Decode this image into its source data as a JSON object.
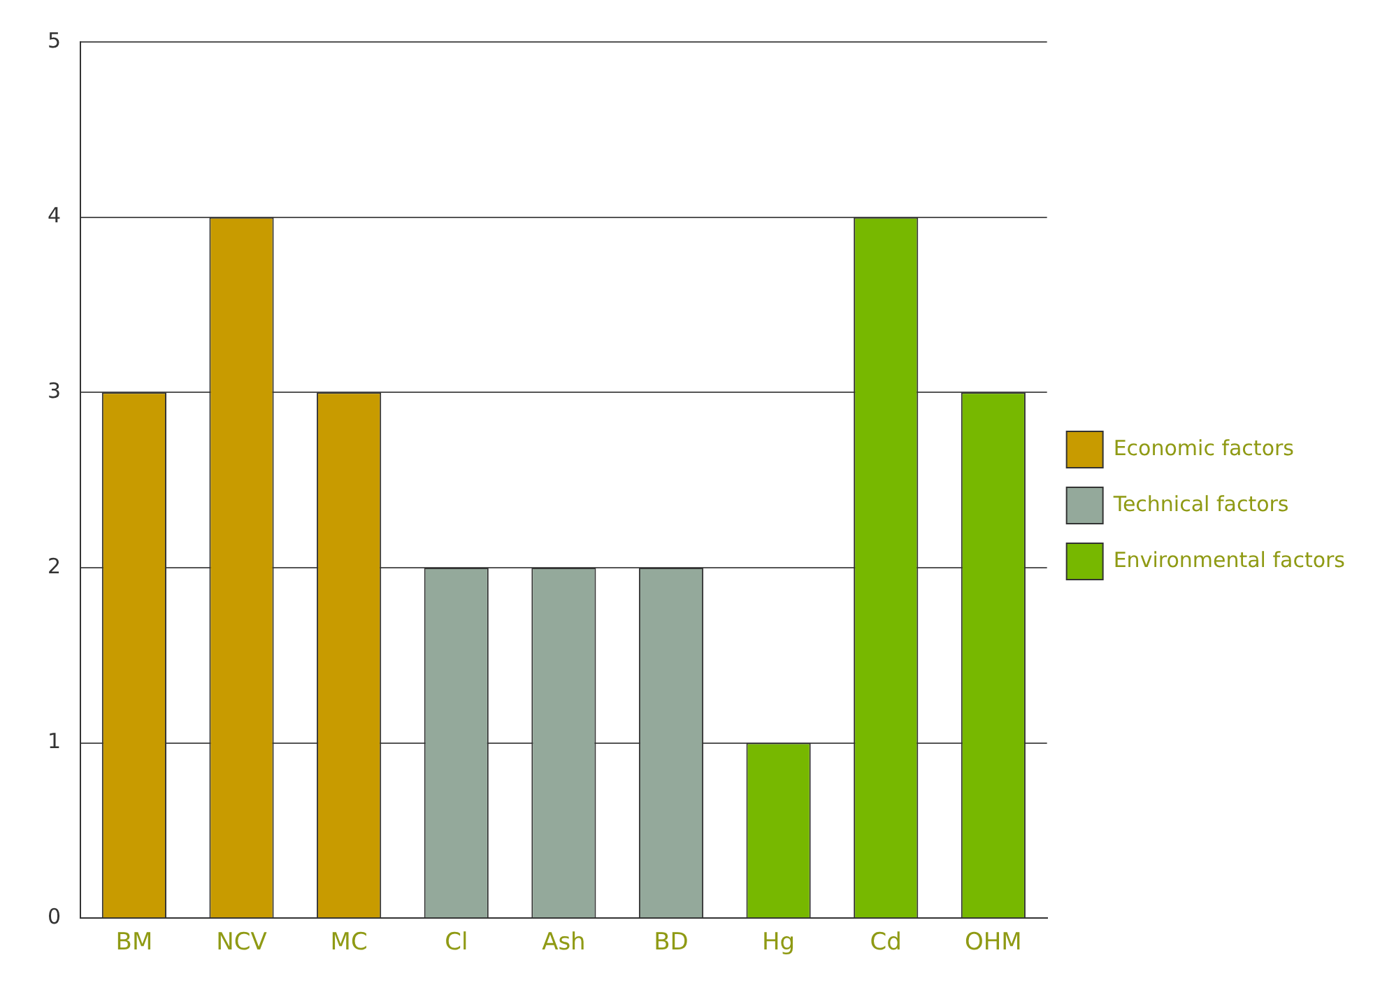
{
  "chart_data": {
    "type": "bar",
    "categories": [
      "BM",
      "NCV",
      "MC",
      "Cl",
      "Ash",
      "BD",
      "Hg",
      "Cd",
      "OHM"
    ],
    "series": [
      {
        "name": "Economic factors",
        "color": "#c89b00",
        "values": [
          3,
          4,
          3,
          null,
          null,
          null,
          null,
          null,
          null
        ]
      },
      {
        "name": "Technical factors",
        "color": "#94a99b",
        "values": [
          null,
          null,
          null,
          2,
          2,
          2,
          null,
          null,
          null
        ]
      },
      {
        "name": "Environmental factors",
        "color": "#77b800",
        "values": [
          null,
          null,
          null,
          null,
          null,
          null,
          1,
          4,
          3
        ]
      }
    ],
    "ylim": [
      0,
      5
    ],
    "yticks": [
      0,
      1,
      2,
      3,
      4,
      5
    ],
    "grid": "y",
    "legend": "right"
  }
}
